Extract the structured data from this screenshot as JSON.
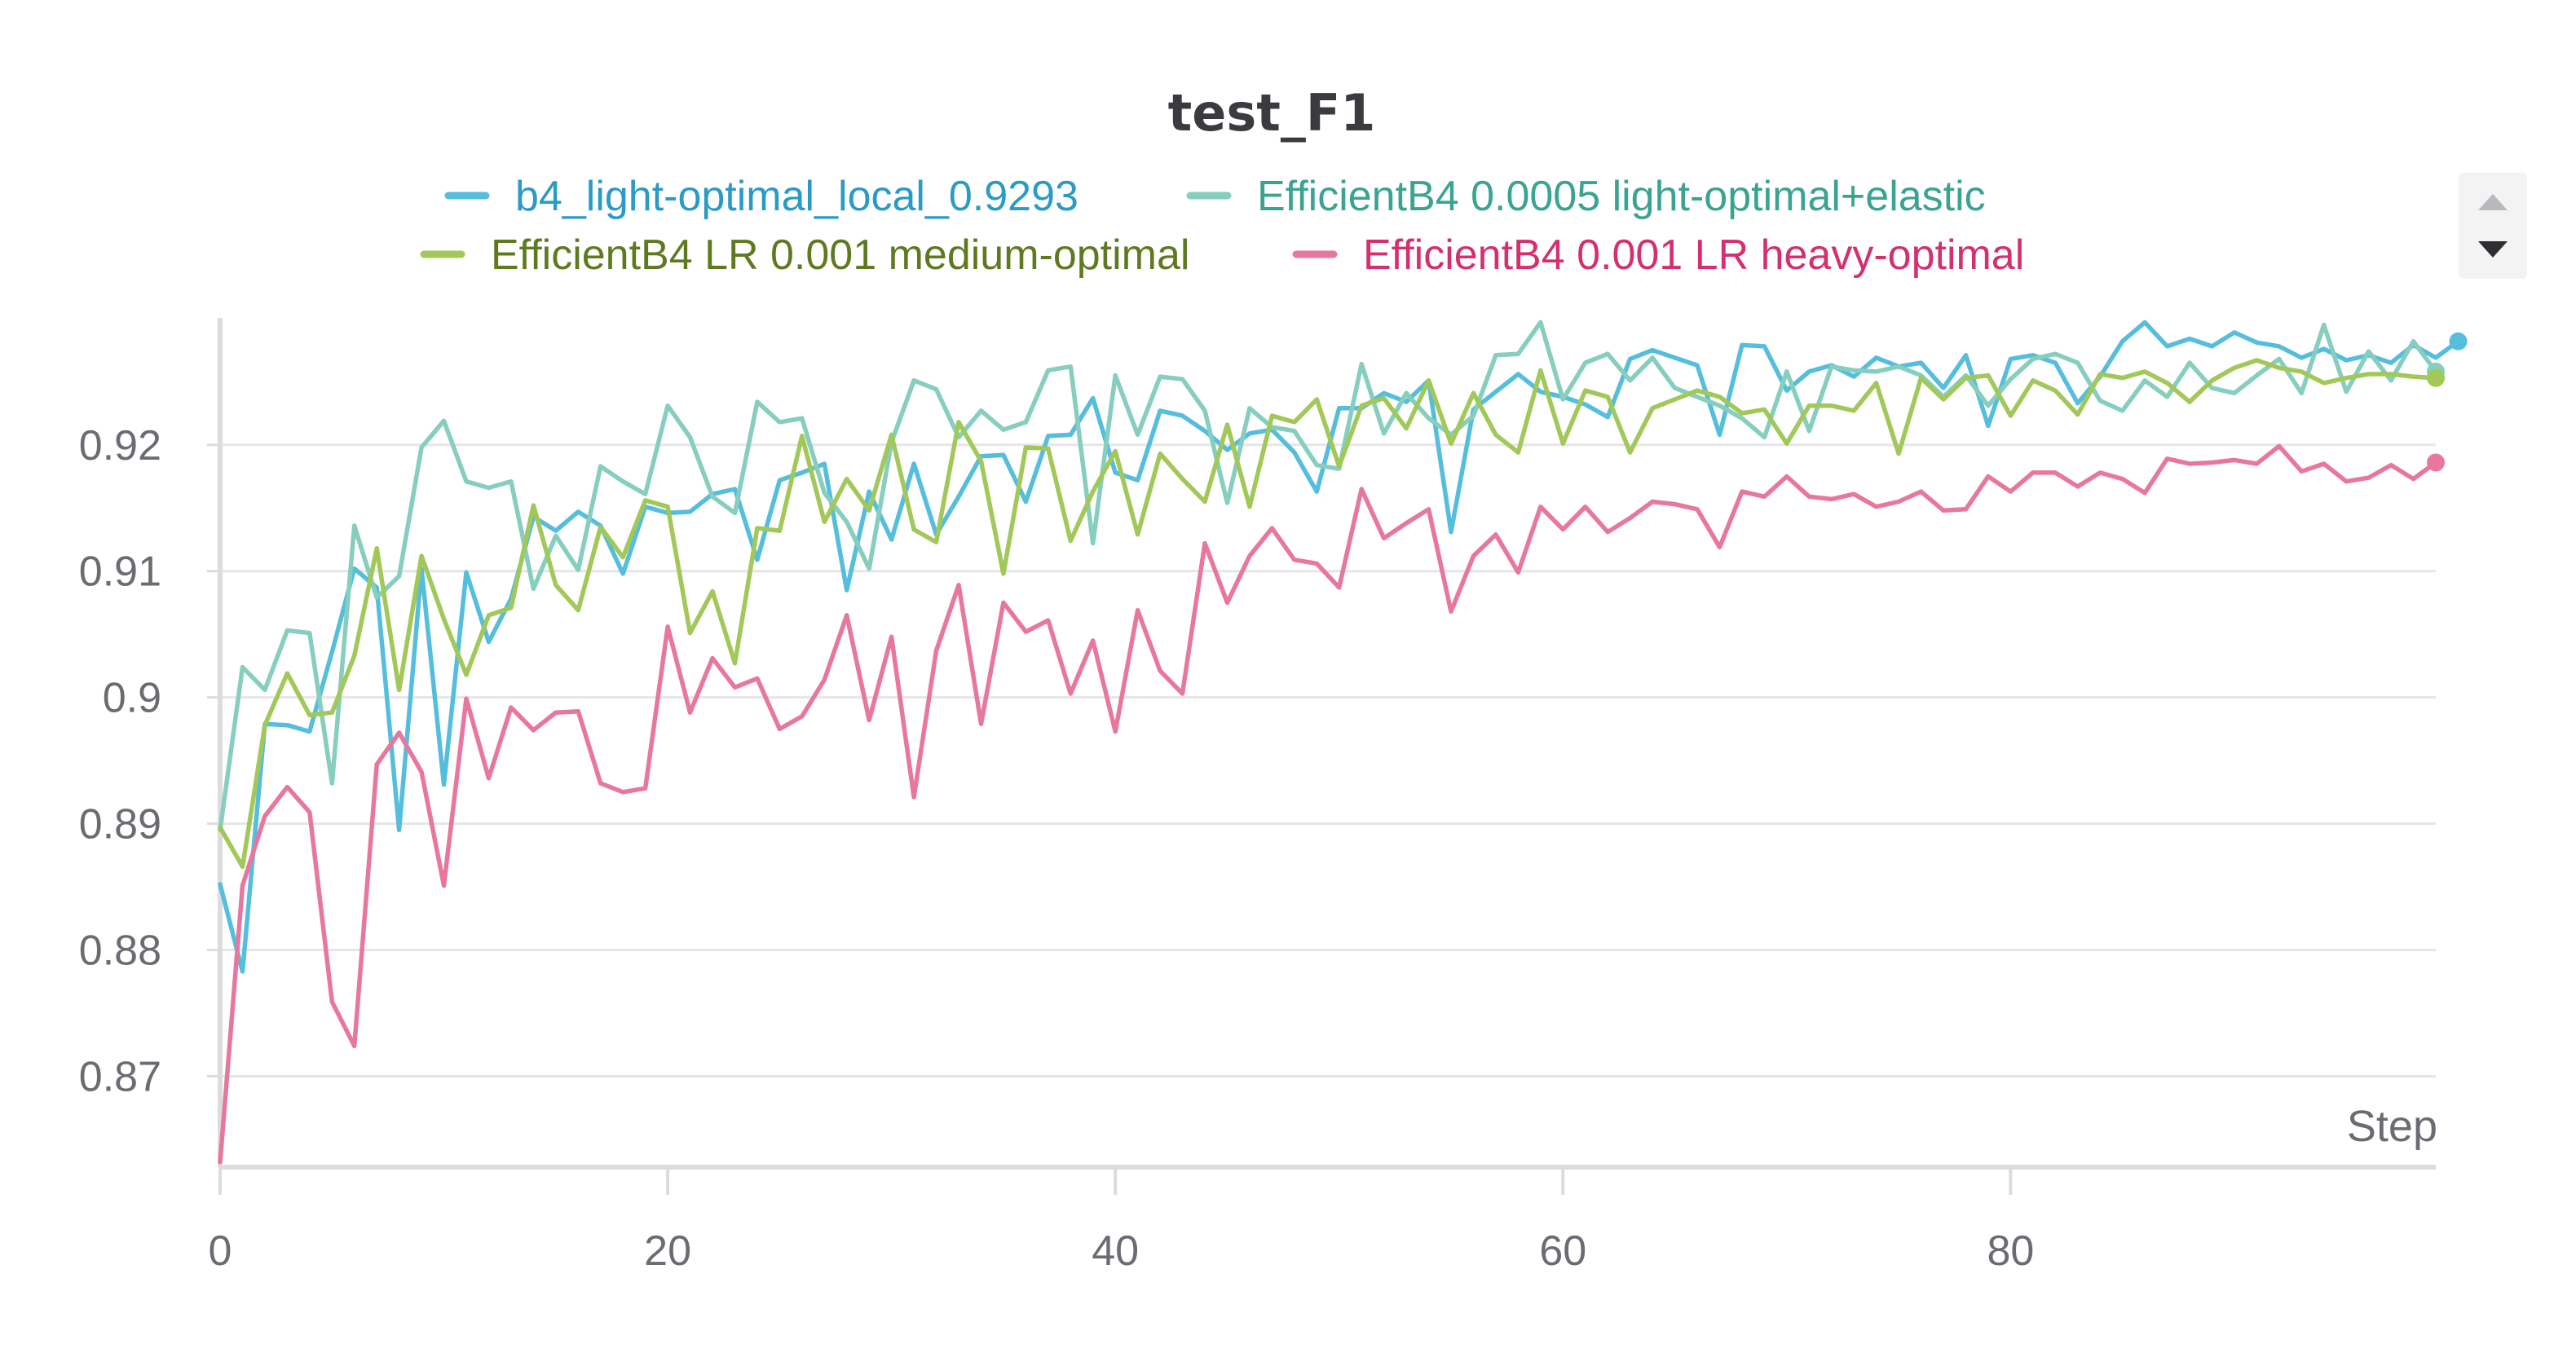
{
  "chart_data": {
    "type": "line",
    "title": "test_F1",
    "xlabel": "Step",
    "ylabel": "",
    "xlim": [
      0,
      99
    ],
    "ylim": [
      0.8628,
      0.9307
    ],
    "x_ticks": [
      0,
      20,
      40,
      60,
      80
    ],
    "x_tick_labels": [
      "0",
      "20",
      "40",
      "60",
      "80"
    ],
    "y_ticks": [
      0.87,
      0.88,
      0.89,
      0.9,
      0.91,
      0.92
    ],
    "y_tick_labels": [
      "0.87",
      "0.88",
      "0.89",
      "0.9",
      "0.91",
      "0.92"
    ],
    "grid": true,
    "legend_position": "top",
    "series": [
      {
        "name": "b4_light-optimal_local_0.9293",
        "color": "#56bedd",
        "text_color": "#2a9bc4",
        "values": [
          0.8852,
          0.8783,
          0.8979,
          0.8978,
          0.8973,
          0.9036,
          0.9102,
          0.9087,
          0.8895,
          0.9102,
          0.8931,
          0.9099,
          0.9044,
          0.9078,
          0.9143,
          0.9132,
          0.9147,
          0.9136,
          0.9098,
          0.9151,
          0.9146,
          0.9147,
          0.9161,
          0.9165,
          0.9109,
          0.9172,
          0.9178,
          0.9185,
          0.9085,
          0.9163,
          0.9125,
          0.9185,
          0.9129,
          0.9159,
          0.9191,
          0.9192,
          0.9155,
          0.9207,
          0.9208,
          0.9237,
          0.9178,
          0.9172,
          0.9227,
          0.9223,
          0.9211,
          0.9196,
          0.9209,
          0.9212,
          0.9194,
          0.9163,
          0.9229,
          0.9229,
          0.9241,
          0.9234,
          0.9251,
          0.9131,
          0.9228,
          0.9242,
          0.9256,
          0.9242,
          0.9238,
          0.9232,
          0.9222,
          0.9268,
          0.9275,
          0.9269,
          0.9263,
          0.9208,
          0.9279,
          0.9278,
          0.9243,
          0.9258,
          0.9263,
          0.9254,
          0.9269,
          0.9262,
          0.9265,
          0.9245,
          0.9271,
          0.9215,
          0.9268,
          0.9271,
          0.9265,
          0.9233,
          0.9254,
          0.9282,
          0.9297,
          0.9278,
          0.9284,
          0.9278,
          0.9289,
          0.9281,
          0.9278,
          0.9269,
          0.9276,
          0.9267,
          0.9271,
          0.9265,
          0.9279,
          0.9269,
          0.9282
        ]
      },
      {
        "name": "EfficientB4 0.0005 light-optimal+elastic",
        "color": "#86cebe",
        "text_color": "#3aa391",
        "values": [
          0.8895,
          0.9024,
          0.9006,
          0.9053,
          0.9051,
          0.8932,
          0.9136,
          0.9079,
          0.9096,
          0.9198,
          0.9219,
          0.9171,
          0.9166,
          0.9171,
          0.9086,
          0.9128,
          0.9101,
          0.9183,
          0.9171,
          0.9161,
          0.9231,
          0.9206,
          0.9159,
          0.9146,
          0.9234,
          0.9218,
          0.9221,
          0.9162,
          0.9139,
          0.9102,
          0.9202,
          0.9251,
          0.9244,
          0.9206,
          0.9227,
          0.9212,
          0.9218,
          0.9259,
          0.9262,
          0.9122,
          0.9255,
          0.9208,
          0.9254,
          0.9252,
          0.9227,
          0.9154,
          0.9229,
          0.9214,
          0.9211,
          0.9184,
          0.9181,
          0.9264,
          0.9209,
          0.9241,
          0.9221,
          0.9208,
          0.9223,
          0.9271,
          0.9272,
          0.9297,
          0.9236,
          0.9265,
          0.9272,
          0.9251,
          0.9269,
          0.9245,
          0.9238,
          0.9231,
          0.9221,
          0.9206,
          0.9258,
          0.9211,
          0.9262,
          0.9259,
          0.9258,
          0.9262,
          0.9255,
          0.9238,
          0.9255,
          0.9231,
          0.9252,
          0.9268,
          0.9272,
          0.9265,
          0.9235,
          0.9227,
          0.9251,
          0.9238,
          0.9265,
          0.9245,
          0.9241,
          0.9255,
          0.9268,
          0.9241,
          0.9295,
          0.9242,
          0.9274,
          0.9251,
          0.9282,
          0.9258
        ]
      },
      {
        "name": "EfficientB4 LR 0.001 medium-optimal",
        "color": "#a1c859",
        "text_color": "#5e7a1f",
        "values": [
          0.8897,
          0.8866,
          0.8978,
          0.9019,
          0.8986,
          0.8988,
          0.9033,
          0.9118,
          0.9006,
          0.9112,
          0.9062,
          0.9018,
          0.9065,
          0.9071,
          0.9152,
          0.9089,
          0.9069,
          0.9135,
          0.9111,
          0.9156,
          0.9151,
          0.9051,
          0.9084,
          0.9027,
          0.9134,
          0.9132,
          0.9207,
          0.9139,
          0.9173,
          0.9148,
          0.9208,
          0.9133,
          0.9123,
          0.9218,
          0.9187,
          0.9098,
          0.9198,
          0.9197,
          0.9124,
          0.9163,
          0.9195,
          0.9129,
          0.9193,
          0.9173,
          0.9155,
          0.9216,
          0.9151,
          0.9223,
          0.9218,
          0.9236,
          0.9183,
          0.9231,
          0.9237,
          0.9213,
          0.9251,
          0.9201,
          0.9241,
          0.9208,
          0.9194,
          0.9259,
          0.9201,
          0.9243,
          0.9238,
          0.9194,
          0.9229,
          0.9236,
          0.9243,
          0.9238,
          0.9225,
          0.9228,
          0.9201,
          0.9231,
          0.9231,
          0.9227,
          0.9249,
          0.9193,
          0.9253,
          0.9236,
          0.9253,
          0.9255,
          0.9223,
          0.9251,
          0.9243,
          0.9224,
          0.9256,
          0.9253,
          0.9258,
          0.9249,
          0.9234,
          0.9251,
          0.9261,
          0.9267,
          0.9261,
          0.9258,
          0.9249,
          0.9253,
          0.9256,
          0.9256,
          0.9254,
          0.9253
        ]
      },
      {
        "name": "EfficientB4 0.001 LR heavy-optimal",
        "color": "#e8779f",
        "text_color": "#d42f6f",
        "values": [
          0.8632,
          0.8851,
          0.8906,
          0.8929,
          0.8909,
          0.8759,
          0.8724,
          0.8947,
          0.8972,
          0.8941,
          0.8851,
          0.8999,
          0.8936,
          0.8992,
          0.8974,
          0.8988,
          0.8989,
          0.8932,
          0.8925,
          0.8928,
          0.9056,
          0.8988,
          0.9031,
          0.9008,
          0.9015,
          0.8975,
          0.8985,
          0.9014,
          0.9065,
          0.8982,
          0.9048,
          0.8921,
          0.9037,
          0.9089,
          0.8979,
          0.9075,
          0.9052,
          0.9061,
          0.9003,
          0.9045,
          0.8973,
          0.9069,
          0.9021,
          0.9003,
          0.9122,
          0.9075,
          0.9112,
          0.9134,
          0.9109,
          0.9106,
          0.9087,
          0.9165,
          0.9126,
          0.9138,
          0.9149,
          0.9068,
          0.9112,
          0.9129,
          0.9099,
          0.9151,
          0.9133,
          0.9151,
          0.9131,
          0.9142,
          0.9155,
          0.9153,
          0.9149,
          0.9119,
          0.9163,
          0.9159,
          0.9175,
          0.9159,
          0.9157,
          0.9161,
          0.9151,
          0.9155,
          0.9163,
          0.9148,
          0.9149,
          0.9175,
          0.9163,
          0.9178,
          0.9178,
          0.9167,
          0.9178,
          0.9173,
          0.9162,
          0.9189,
          0.9185,
          0.9186,
          0.9188,
          0.9185,
          0.9199,
          0.9179,
          0.9185,
          0.9171,
          0.9174,
          0.9184,
          0.9173,
          0.9186
        ]
      }
    ]
  },
  "controls": {
    "legend_scroll_up": "▲",
    "legend_scroll_down": "▼"
  }
}
